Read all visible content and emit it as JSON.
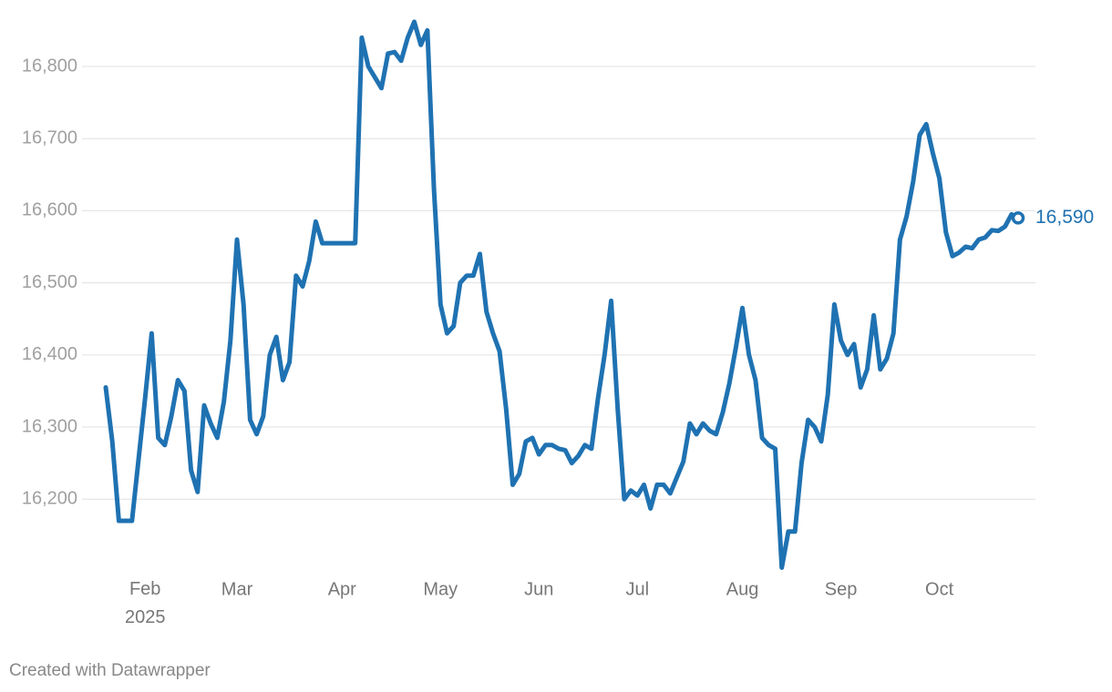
{
  "chart_data": {
    "type": "line",
    "color": "#1f72b2",
    "categories": [
      null,
      null,
      null,
      null,
      null,
      null,
      "Feb 2025",
      null,
      null,
      null,
      null,
      null,
      null,
      null,
      null,
      null,
      null,
      null,
      null,
      null,
      "Mar",
      null,
      null,
      null,
      null,
      null,
      null,
      null,
      null,
      null,
      null,
      null,
      null,
      null,
      null,
      null,
      "Apr",
      null,
      null,
      null,
      null,
      null,
      null,
      null,
      null,
      null,
      null,
      null,
      null,
      null,
      null,
      "May",
      null,
      null,
      null,
      null,
      null,
      null,
      null,
      null,
      null,
      null,
      null,
      null,
      null,
      null,
      "Jun",
      null,
      null,
      null,
      null,
      null,
      null,
      null,
      null,
      null,
      null,
      null,
      null,
      null,
      null,
      "Jul",
      null,
      null,
      null,
      null,
      null,
      null,
      null,
      null,
      null,
      null,
      null,
      null,
      null,
      null,
      null,
      "Aug",
      null,
      null,
      null,
      null,
      null,
      null,
      null,
      null,
      null,
      null,
      null,
      null,
      null,
      null,
      "Sep",
      null,
      null,
      null,
      null,
      null,
      null,
      null,
      null,
      null,
      null,
      null,
      null,
      null,
      null,
      "Oct",
      null,
      null,
      null,
      null,
      null,
      null,
      null,
      null,
      null,
      null,
      null,
      null
    ],
    "values": [
      16355,
      16280,
      16170,
      16170,
      16170,
      16255,
      16340,
      16430,
      16285,
      16275,
      16315,
      16365,
      16350,
      16240,
      16210,
      16330,
      16305,
      16285,
      16335,
      16420,
      16560,
      16470,
      16310,
      16290,
      16315,
      16400,
      16425,
      16365,
      16390,
      16510,
      16495,
      16530,
      16585,
      16555,
      16555,
      16555,
      16555,
      16555,
      16555,
      16840,
      16800,
      16785,
      16770,
      16818,
      16820,
      16808,
      16840,
      16862,
      16830,
      16850,
      16630,
      16470,
      16430,
      16440,
      16500,
      16510,
      16510,
      16540,
      16460,
      16430,
      16405,
      16325,
      16220,
      16235,
      16280,
      16285,
      16262,
      16275,
      16275,
      16270,
      16268,
      16250,
      16260,
      16275,
      16270,
      16340,
      16400,
      16475,
      16325,
      16200,
      16212,
      16205,
      16220,
      16187,
      16220,
      16220,
      16208,
      16230,
      16252,
      16305,
      16290,
      16305,
      16295,
      16290,
      16320,
      16360,
      16410,
      16465,
      16400,
      16365,
      16285,
      16275,
      16270,
      16105,
      16155,
      16155,
      16250,
      16310,
      16300,
      16280,
      16345,
      16470,
      16420,
      16400,
      16415,
      16355,
      16380,
      16455,
      16380,
      16395,
      16430,
      16560,
      16592,
      16640,
      16705,
      16720,
      16680,
      16645,
      16570,
      16537,
      16542,
      16550,
      16548,
      16560,
      16563,
      16573,
      16572,
      16578,
      16595,
      16590
    ],
    "value_labels": [
      null,
      null,
      null,
      null,
      null,
      null,
      null,
      null,
      null,
      null,
      null,
      null,
      null,
      null,
      null,
      null,
      null,
      null,
      null,
      null,
      null,
      null,
      null,
      null,
      null,
      null,
      null,
      null,
      null,
      null,
      null,
      null,
      null,
      null,
      null,
      null,
      null,
      null,
      null,
      null,
      null,
      null,
      null,
      null,
      null,
      null,
      null,
      null,
      null,
      null,
      null,
      null,
      null,
      null,
      null,
      null,
      null,
      null,
      null,
      null,
      null,
      null,
      null,
      null,
      null,
      null,
      null,
      null,
      null,
      null,
      null,
      null,
      null,
      null,
      null,
      null,
      null,
      null,
      null,
      null,
      null,
      null,
      null,
      null,
      null,
      null,
      null,
      null,
      null,
      null,
      null,
      null,
      null,
      null,
      null,
      null,
      null,
      null,
      null,
      null,
      null,
      null,
      null,
      null,
      null,
      null,
      null,
      null,
      null,
      null,
      null,
      null,
      null,
      null,
      null,
      null,
      null,
      null,
      null,
      null,
      null,
      null,
      null,
      null,
      null,
      null,
      null,
      null,
      null,
      null,
      null,
      null,
      null,
      null,
      null,
      null,
      null,
      null,
      null,
      "16,590"
    ],
    "ylim": [
      16100,
      16870
    ],
    "yticks": [
      {
        "value": 16200,
        "label": "16,200"
      },
      {
        "value": 16300,
        "label": "16,300"
      },
      {
        "value": 16400,
        "label": "16,400"
      },
      {
        "value": 16500,
        "label": "16,500"
      },
      {
        "value": 16600,
        "label": "16,600"
      },
      {
        "value": 16700,
        "label": "16,700"
      },
      {
        "value": 16800,
        "label": "16,800"
      }
    ],
    "grid": true,
    "source": "Created with Datawrapper"
  }
}
